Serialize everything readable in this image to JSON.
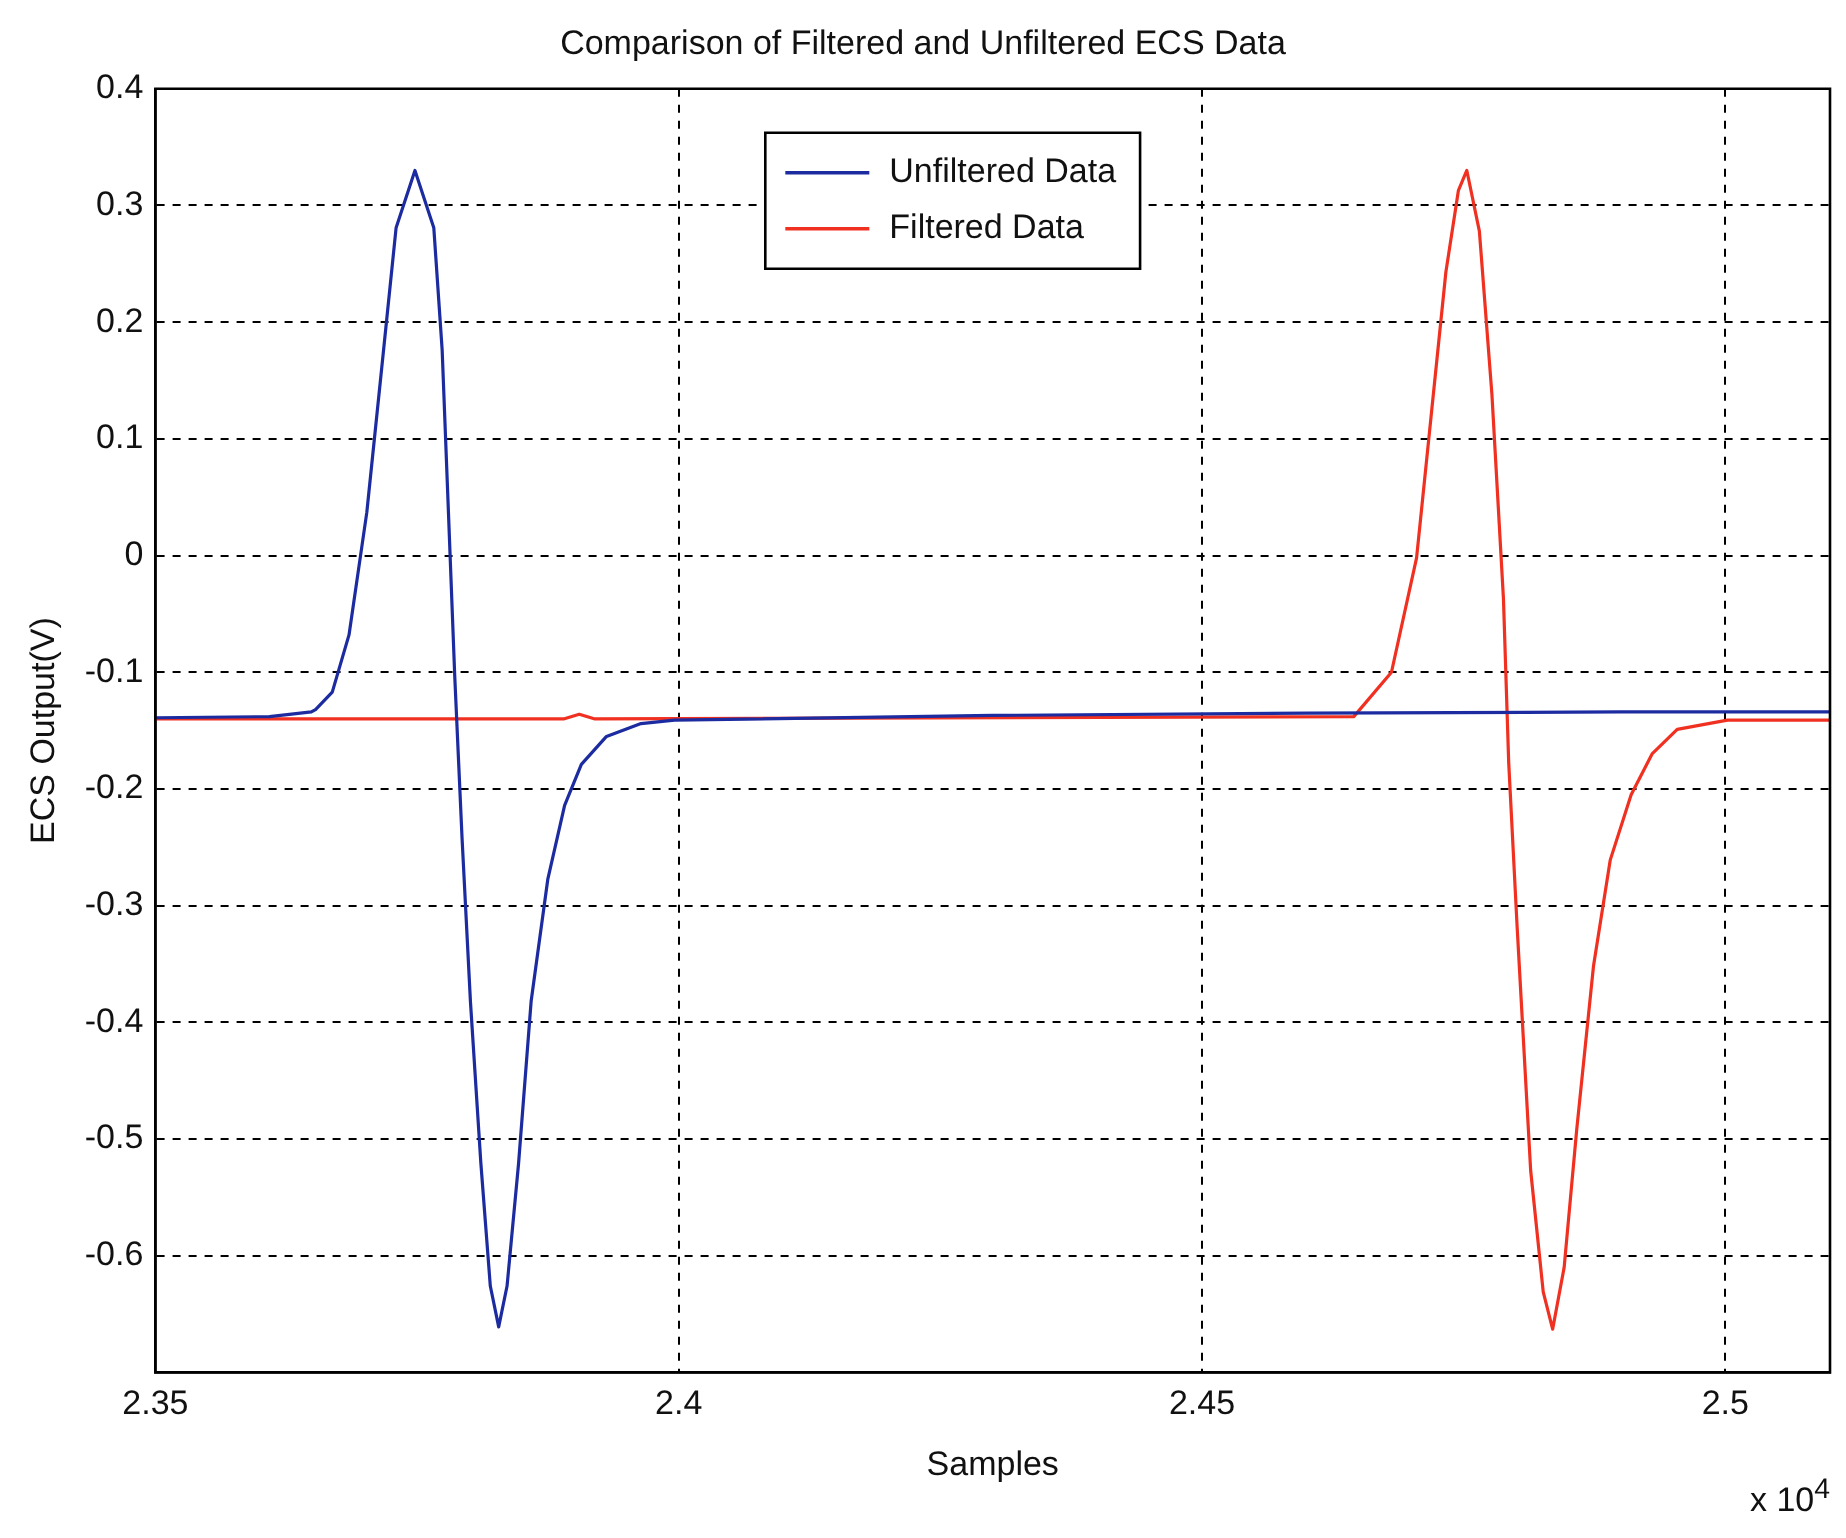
{
  "chart_data": {
    "type": "line",
    "title": "Comparison of Filtered and Unfiltered ECS Data",
    "xlabel": "Samples",
    "ylabel": "ECS Output(V)",
    "annotations": [
      "x 10$^{4}$"
    ],
    "xlim": [
      2.35,
      2.51
    ],
    "xticks": [
      2.35,
      2.4,
      2.45,
      2.5
    ],
    "ylim": [
      -0.7,
      0.4
    ],
    "yticks": [
      -0.6,
      -0.5,
      -0.4,
      -0.3,
      -0.2,
      -0.1,
      0,
      0.1,
      0.2,
      0.3,
      0.4
    ],
    "grid": true,
    "legend": "top",
    "marker": "none",
    "line_style": "solid",
    "series": [
      {
        "name": "Unfiltered Data",
        "color": "#1c2ca0",
        "x": [
          2.35,
          2.3609,
          2.3649,
          2.3653,
          2.3669,
          2.3685,
          2.3702,
          2.3718,
          2.373,
          2.3748,
          2.3766,
          2.3774,
          2.378,
          2.3786,
          2.3793,
          2.3801,
          2.3811,
          2.382,
          2.3828,
          2.3836,
          2.3847,
          2.3859,
          2.3875,
          2.3891,
          2.3907,
          2.3931,
          2.3964,
          2.3996,
          2.43,
          2.46,
          2.49,
          2.51
        ],
        "values": [
          -0.139,
          -0.138,
          -0.134,
          -0.132,
          -0.117,
          -0.068,
          0.037,
          0.176,
          0.281,
          0.33,
          0.281,
          0.176,
          0.037,
          -0.103,
          -0.242,
          -0.382,
          -0.521,
          -0.626,
          -0.661,
          -0.626,
          -0.521,
          -0.382,
          -0.277,
          -0.214,
          -0.179,
          -0.155,
          -0.144,
          -0.141,
          -0.137,
          -0.135,
          -0.134,
          -0.134
        ]
      },
      {
        "name": "Filtered Data",
        "color": "#f03020",
        "x": [
          2.35,
          2.389,
          2.3905,
          2.392,
          2.4645,
          2.4681,
          2.4705,
          2.4717,
          2.4733,
          2.4745,
          2.4753,
          2.4765,
          2.4777,
          2.4788,
          2.4793,
          2.4801,
          2.4814,
          2.4826,
          2.4835,
          2.4846,
          2.4858,
          2.4874,
          2.489,
          2.491,
          2.493,
          2.4954,
          2.5002,
          2.51
        ],
        "values": [
          -0.14,
          -0.14,
          -0.136,
          -0.14,
          -0.138,
          -0.1,
          -0.002,
          0.103,
          0.243,
          0.313,
          0.33,
          0.278,
          0.138,
          -0.037,
          -0.177,
          -0.317,
          -0.527,
          -0.631,
          -0.663,
          -0.61,
          -0.492,
          -0.352,
          -0.261,
          -0.205,
          -0.17,
          -0.149,
          -0.141,
          -0.141
        ]
      }
    ]
  }
}
